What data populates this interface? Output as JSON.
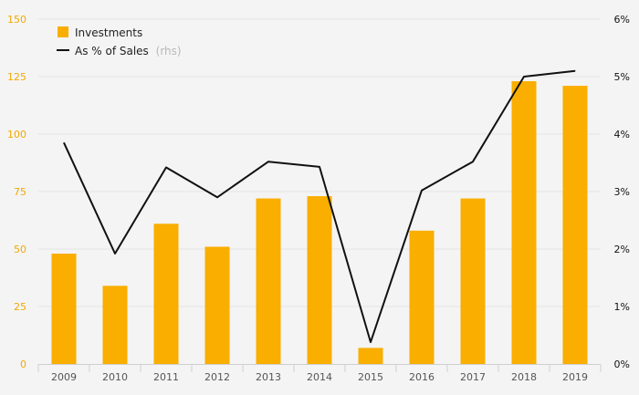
{
  "chart_data": {
    "type": "bar",
    "categories": [
      "2009",
      "2010",
      "2011",
      "2012",
      "2013",
      "2014",
      "2015",
      "2016",
      "2017",
      "2018",
      "2019"
    ],
    "series": [
      {
        "name": "Investments",
        "type": "bar",
        "axis": "left",
        "color": "#f9ae00",
        "values": [
          48,
          34,
          61,
          51,
          72,
          73,
          7,
          58,
          72,
          123,
          121
        ]
      },
      {
        "name": "As % of Sales",
        "name_suffix": "(rhs)",
        "type": "line",
        "axis": "right",
        "color": "#111111",
        "values": [
          3.85,
          1.92,
          3.42,
          2.9,
          3.52,
          3.43,
          0.38,
          3.02,
          3.52,
          5.0,
          5.1
        ]
      }
    ],
    "y_left": {
      "ylim": [
        0,
        150
      ],
      "ticks": [
        0,
        25,
        50,
        75,
        100,
        125,
        150
      ],
      "tick_labels": [
        "0",
        "25",
        "50",
        "75",
        "100",
        "125",
        "150"
      ],
      "color": "#f2a900"
    },
    "y_right": {
      "ylim": [
        0,
        6
      ],
      "ticks": [
        0,
        1,
        2,
        3,
        4,
        5,
        6
      ],
      "tick_labels": [
        "0%",
        "1%",
        "2%",
        "3%",
        "4%",
        "5%",
        "6%"
      ],
      "color": "#111111"
    },
    "grid": true,
    "legend": {
      "position": "top-left",
      "items": [
        {
          "label": "Investments",
          "suffix": ""
        },
        {
          "label": "As % of Sales",
          "suffix": "(rhs)"
        }
      ]
    },
    "title": "",
    "xlabel": "",
    "ylabel": ""
  }
}
